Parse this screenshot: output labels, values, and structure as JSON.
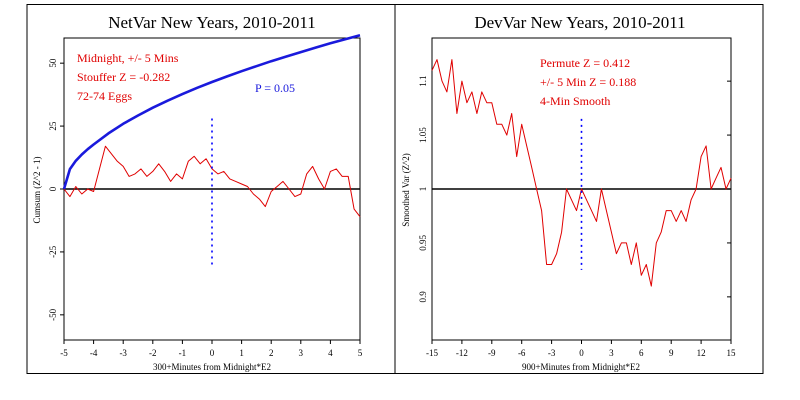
{
  "colors": {
    "red": "#e00000",
    "blue": "#1a1adc",
    "black": "#000000",
    "dotted_blue": "#0000ff"
  },
  "chart_data": [
    {
      "type": "line",
      "title": "NetVar New Years, 2010-2011",
      "xlabel": "300+Minutes from Midnight*E2",
      "ylabel": "Cumsum (Z^2 - 1)",
      "xlim": [
        -5,
        5
      ],
      "ylim": [
        -60,
        60
      ],
      "xticks": [
        -5,
        -4,
        -3,
        -2,
        -1,
        0,
        1,
        2,
        3,
        4,
        5
      ],
      "yticks": [
        -50,
        -25,
        0,
        25,
        50
      ],
      "annotations": [
        "Midnight, +/- 5 Mins",
        "Stouffer Z = -0.282",
        "72-74 Eggs"
      ],
      "p_label": "P = 0.05",
      "series": [
        {
          "name": "Cumsum",
          "color": "#e00000",
          "x": [
            -5,
            -4.8,
            -4.6,
            -4.4,
            -4.2,
            -4.0,
            -3.8,
            -3.6,
            -3.4,
            -3.2,
            -3.0,
            -2.8,
            -2.6,
            -2.4,
            -2.2,
            -2.0,
            -1.8,
            -1.6,
            -1.4,
            -1.2,
            -1.0,
            -0.8,
            -0.6,
            -0.4,
            -0.2,
            0,
            0.2,
            0.4,
            0.6,
            0.8,
            1.0,
            1.2,
            1.4,
            1.6,
            1.8,
            2.0,
            2.2,
            2.4,
            2.6,
            2.8,
            3.0,
            3.2,
            3.4,
            3.6,
            3.8,
            4.0,
            4.2,
            4.4,
            4.6,
            4.8,
            5.0
          ],
          "y": [
            0,
            -3,
            1,
            -2,
            0,
            -1,
            8,
            17,
            14,
            11,
            9,
            5,
            6,
            8,
            5,
            7,
            10,
            7,
            3,
            6,
            4,
            11,
            13,
            10,
            12,
            8,
            6,
            7,
            4,
            3,
            2,
            1,
            -2,
            -4,
            -7,
            -1,
            1,
            3,
            0,
            -3,
            -2,
            6,
            9,
            4,
            0,
            7,
            8,
            5,
            5,
            -8,
            -11
          ]
        },
        {
          "name": "P = 0.05 envelope",
          "color": "#1a1adc",
          "x": [
            -5,
            -4.8,
            -4.6,
            -4.4,
            -4.2,
            -4.0,
            -3.5,
            -3.0,
            -2.5,
            -2.0,
            -1.5,
            -1.0,
            -0.5,
            0,
            0.5,
            1.0,
            1.5,
            2.0,
            2.5,
            3.0,
            3.5,
            4.0,
            4.5,
            5.0
          ],
          "y": [
            0,
            7.9,
            11.2,
            13.7,
            15.8,
            17.7,
            22.1,
            25.9,
            29.2,
            32.3,
            35.1,
            37.7,
            40.2,
            42.5,
            44.7,
            46.8,
            48.8,
            50.8,
            52.6,
            54.4,
            56.2,
            57.9,
            59.5,
            61.1
          ]
        }
      ],
      "marker_x": 0,
      "marker_range": [
        -31,
        28
      ]
    },
    {
      "type": "line",
      "title": "DevVar New Years, 2010-2011",
      "xlabel": "900+Minutes from Midnight*E2",
      "ylabel": "Smoothed Var (Z^2)",
      "xlim": [
        -15,
        15
      ],
      "ylim": [
        0.86,
        1.14
      ],
      "xticks": [
        -15,
        -12,
        -9,
        -6,
        -3,
        0,
        3,
        6,
        9,
        12,
        15
      ],
      "yticks": [
        0.9,
        0.95,
        1,
        1.05,
        1.1
      ],
      "annotations": [
        "Permute Z = 0.412",
        "+/- 5 Min Z = 0.188",
        "4-Min Smooth"
      ],
      "series": [
        {
          "name": "Smoothed Var",
          "color": "#e00000",
          "x": [
            -15,
            -14.5,
            -14,
            -13.5,
            -13,
            -12.5,
            -12,
            -11.5,
            -11,
            -10.5,
            -10,
            -9.5,
            -9,
            -8.5,
            -8,
            -7.5,
            -7,
            -6.5,
            -6,
            -5.5,
            -5,
            -4.5,
            -4,
            -3.5,
            -3,
            -2.5,
            -2,
            -1.5,
            -1,
            -0.5,
            0,
            0.5,
            1,
            1.5,
            2,
            2.5,
            3,
            3.5,
            4,
            4.5,
            5,
            5.5,
            6,
            6.5,
            7,
            7.5,
            8,
            8.5,
            9,
            9.5,
            10,
            10.5,
            11,
            11.5,
            12,
            12.5,
            13,
            13.5,
            14,
            14.5,
            15
          ],
          "y": [
            1.11,
            1.12,
            1.1,
            1.09,
            1.12,
            1.07,
            1.1,
            1.08,
            1.09,
            1.07,
            1.09,
            1.08,
            1.08,
            1.06,
            1.06,
            1.05,
            1.07,
            1.03,
            1.06,
            1.04,
            1.02,
            1.0,
            0.98,
            0.93,
            0.93,
            0.94,
            0.96,
            1.0,
            0.99,
            0.98,
            1.0,
            0.99,
            0.98,
            0.97,
            1.0,
            0.98,
            0.96,
            0.94,
            0.95,
            0.95,
            0.93,
            0.95,
            0.92,
            0.93,
            0.91,
            0.95,
            0.96,
            0.98,
            0.98,
            0.97,
            0.98,
            0.97,
            0.99,
            1.0,
            1.03,
            1.04,
            1.0,
            1.01,
            1.02,
            1.0,
            1.01
          ]
        }
      ],
      "baseline": 1,
      "marker_x": 0,
      "marker_range": [
        0.925,
        1.065
      ]
    }
  ]
}
